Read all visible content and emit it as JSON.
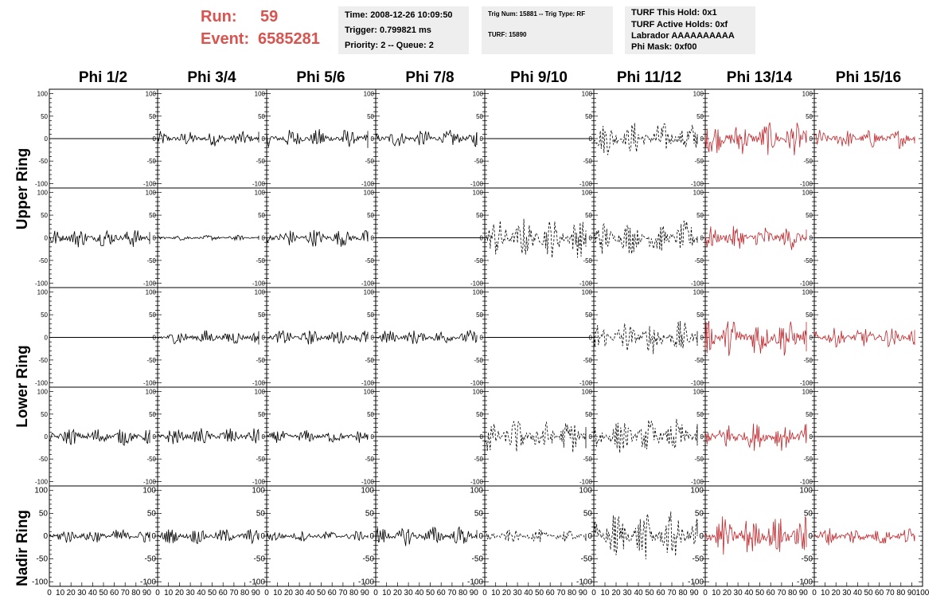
{
  "header": {
    "run_label": "Run:",
    "run_value": "59",
    "event_label": "Event:",
    "event_value": "6585281"
  },
  "info_boxes": [
    {
      "lines": [
        "Time: 2008-12-26 10:09:50",
        "Trigger: 0.799821 ms",
        "Priority: 2 -- Queue: 2"
      ]
    },
    {
      "lines": [
        "Trig Num: 15881 -- Trig Type: RF",
        "TURF: 15890"
      ]
    },
    {
      "lines": [
        "TURF This Hold: 0x1",
        "TURF Active Holds: 0xf",
        "Labrador AAAAAAAAAA",
        "Phi Mask: 0xf00"
      ]
    }
  ],
  "columns": [
    "Phi 1/2",
    "Phi 3/4",
    "Phi 5/6",
    "Phi 7/8",
    "Phi 9/10",
    "Phi 11/12",
    "Phi 13/14",
    "Phi 15/16"
  ],
  "ring_labels": [
    "Upper Ring",
    "Lower Ring",
    "Nadir Ring"
  ],
  "colors": {
    "background": "#ffffff",
    "info_box": "#eeeeee",
    "header_text": "#d9534f",
    "trace_black": "#000000",
    "trace_red": "#c0282d"
  },
  "chart_data": {
    "type": "line",
    "description_axes": "8 columns x 5 rows of waveform panels, voltage vs sample index",
    "xlim": [
      0,
      100
    ],
    "ylim": [
      -110,
      110
    ],
    "y_ticks": [
      100,
      50,
      0,
      -50,
      -100
    ],
    "y_tick_labels": [
      "100",
      "50",
      "0",
      "-50",
      "-100"
    ],
    "x_ticks": [
      0,
      10,
      20,
      30,
      40,
      50,
      60,
      70,
      80,
      90,
      100
    ],
    "x_tick_labels": [
      "0",
      "10",
      "20",
      "30",
      "40",
      "50",
      "60",
      "70",
      "80",
      "90",
      "100"
    ],
    "rows": [
      {
        "amplitudes": [
          0,
          17,
          22,
          20,
          0,
          38,
          38,
          22
        ],
        "styles": [
          "flat",
          "solid",
          "solid",
          "solid",
          "flat",
          "dashed",
          "red",
          "red"
        ]
      },
      {
        "amplitudes": [
          22,
          6,
          20,
          0,
          45,
          38,
          28,
          0
        ],
        "styles": [
          "solid",
          "solid",
          "solid",
          "flat",
          "dashed",
          "dashed",
          "red",
          "flat"
        ]
      },
      {
        "amplitudes": [
          0,
          17,
          17,
          17,
          0,
          38,
          45,
          22
        ],
        "styles": [
          "flat",
          "solid",
          "solid",
          "solid",
          "flat",
          "dashed",
          "red",
          "red"
        ]
      },
      {
        "amplitudes": [
          20,
          20,
          15,
          0,
          40,
          40,
          32,
          0
        ],
        "styles": [
          "solid",
          "solid",
          "solid",
          "flat",
          "dashed",
          "dashed",
          "red",
          "flat"
        ]
      },
      {
        "amplitudes": [
          17,
          17,
          12,
          22,
          15,
          55,
          45,
          20
        ],
        "styles": [
          "solid",
          "solid",
          "solid",
          "solid",
          "dashed",
          "dashed",
          "red",
          "red"
        ]
      }
    ]
  }
}
